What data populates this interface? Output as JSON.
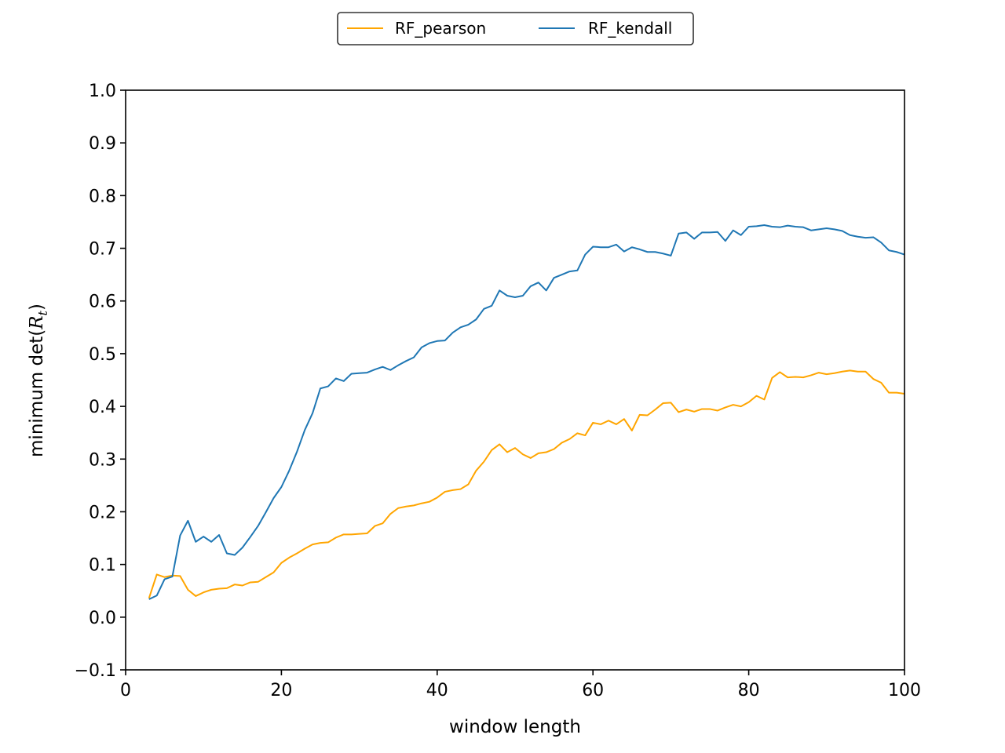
{
  "chart_data": {
    "type": "line",
    "xlabel": "window length",
    "ylabel_prefix": "minimum det(",
    "ylabel_var": "R",
    "ylabel_sub": "t",
    "ylabel_suffix": ")",
    "xlim": [
      0,
      100
    ],
    "ylim": [
      -0.1,
      1.0
    ],
    "xticks": [
      0,
      20,
      40,
      60,
      80,
      100
    ],
    "yticks": [
      -0.1,
      0.0,
      0.1,
      0.2,
      0.3,
      0.4,
      0.5,
      0.6,
      0.7,
      0.8,
      0.9,
      1.0
    ],
    "xtick_labels": [
      "0",
      "20",
      "40",
      "60",
      "80",
      "100"
    ],
    "ytick_labels": [
      "−0.1",
      "0.0",
      "0.1",
      "0.2",
      "0.3",
      "0.4",
      "0.5",
      "0.6",
      "0.7",
      "0.8",
      "0.9",
      "1.0"
    ],
    "grid": false,
    "legend_position": "top-center",
    "x": [
      3,
      4,
      5,
      6,
      7,
      8,
      9,
      10,
      11,
      12,
      13,
      14,
      15,
      16,
      17,
      18,
      19,
      20,
      21,
      22,
      23,
      24,
      25,
      26,
      27,
      28,
      29,
      30,
      31,
      32,
      33,
      34,
      35,
      36,
      37,
      38,
      39,
      40,
      41,
      42,
      43,
      44,
      45,
      46,
      47,
      48,
      49,
      50,
      51,
      52,
      53,
      54,
      55,
      56,
      57,
      58,
      59,
      60,
      61,
      62,
      63,
      64,
      65,
      66,
      67,
      68,
      69,
      70,
      71,
      72,
      73,
      74,
      75,
      76,
      77,
      78,
      79,
      80,
      81,
      82,
      83,
      84,
      85,
      86,
      87,
      88,
      89,
      90,
      91,
      92,
      93,
      94,
      95,
      96,
      97,
      98,
      99,
      100
    ],
    "series": [
      {
        "name": "RF_pearson",
        "color": "#ffa500",
        "values": [
          0.036,
          0.081,
          0.076,
          0.079,
          0.078,
          0.052,
          0.04,
          0.047,
          0.052,
          0.054,
          0.055,
          0.062,
          0.06,
          0.066,
          0.067,
          0.076,
          0.085,
          0.103,
          0.113,
          0.121,
          0.13,
          0.138,
          0.141,
          0.142,
          0.151,
          0.157,
          0.157,
          0.158,
          0.159,
          0.173,
          0.178,
          0.196,
          0.207,
          0.21,
          0.212,
          0.216,
          0.219,
          0.227,
          0.238,
          0.241,
          0.243,
          0.252,
          0.278,
          0.295,
          0.317,
          0.328,
          0.313,
          0.321,
          0.309,
          0.302,
          0.311,
          0.313,
          0.319,
          0.331,
          0.338,
          0.349,
          0.345,
          0.369,
          0.366,
          0.373,
          0.366,
          0.376,
          0.354,
          0.384,
          0.383,
          0.394,
          0.406,
          0.407,
          0.389,
          0.394,
          0.39,
          0.395,
          0.395,
          0.392,
          0.398,
          0.403,
          0.4,
          0.408,
          0.42,
          0.413,
          0.454,
          0.465,
          0.455,
          0.456,
          0.455,
          0.459,
          0.464,
          0.461,
          0.463,
          0.466,
          0.468,
          0.466,
          0.466,
          0.452,
          0.445,
          0.426,
          0.426,
          0.424
        ]
      },
      {
        "name": "RF_kendall",
        "color": "#1f77b4",
        "values": [
          0.034,
          0.041,
          0.072,
          0.077,
          0.155,
          0.183,
          0.143,
          0.153,
          0.143,
          0.156,
          0.121,
          0.118,
          0.132,
          0.152,
          0.173,
          0.199,
          0.226,
          0.247,
          0.278,
          0.314,
          0.355,
          0.387,
          0.434,
          0.438,
          0.453,
          0.448,
          0.462,
          0.463,
          0.464,
          0.47,
          0.475,
          0.469,
          0.478,
          0.486,
          0.493,
          0.512,
          0.52,
          0.524,
          0.525,
          0.54,
          0.55,
          0.555,
          0.565,
          0.585,
          0.591,
          0.62,
          0.61,
          0.607,
          0.61,
          0.628,
          0.635,
          0.62,
          0.644,
          0.65,
          0.656,
          0.658,
          0.688,
          0.703,
          0.702,
          0.702,
          0.707,
          0.694,
          0.702,
          0.698,
          0.693,
          0.693,
          0.69,
          0.686,
          0.728,
          0.73,
          0.718,
          0.73,
          0.73,
          0.731,
          0.714,
          0.734,
          0.725,
          0.741,
          0.742,
          0.744,
          0.741,
          0.74,
          0.743,
          0.741,
          0.74,
          0.734,
          0.736,
          0.738,
          0.736,
          0.733,
          0.725,
          0.722,
          0.72,
          0.721,
          0.711,
          0.696,
          0.693,
          0.688
        ]
      }
    ]
  }
}
